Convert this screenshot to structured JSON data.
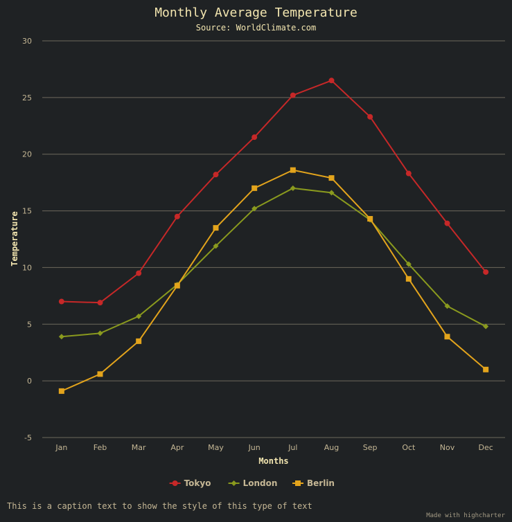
{
  "chart_data": {
    "type": "line",
    "title": "Monthly Average Temperature",
    "subtitle": "Source: WorldClimate.com",
    "xlabel": "Months",
    "ylabel": "Temperature",
    "ylim": [
      -5,
      30
    ],
    "yticks": [
      -5,
      0,
      5,
      10,
      15,
      20,
      25,
      30
    ],
    "grid": true,
    "legend": "bottom-center",
    "categories": [
      "Jan",
      "Feb",
      "Mar",
      "Apr",
      "May",
      "Jun",
      "Jul",
      "Aug",
      "Sep",
      "Oct",
      "Nov",
      "Dec"
    ],
    "series": [
      {
        "name": "Tokyo",
        "color": "#c62828",
        "marker": "circle",
        "values": [
          7.0,
          6.9,
          9.5,
          14.5,
          18.2,
          21.5,
          25.2,
          26.5,
          23.3,
          18.3,
          13.9,
          9.6
        ]
      },
      {
        "name": "London",
        "color": "#8a9a1e",
        "marker": "diamond",
        "values": [
          3.9,
          4.2,
          5.7,
          8.5,
          11.9,
          15.2,
          17.0,
          16.6,
          14.2,
          10.3,
          6.6,
          4.8
        ]
      },
      {
        "name": "Berlin",
        "color": "#e3a41c",
        "marker": "square",
        "values": [
          -0.9,
          0.6,
          3.5,
          8.4,
          13.5,
          17.0,
          18.6,
          17.9,
          14.3,
          9.0,
          3.9,
          1.0
        ]
      }
    ]
  },
  "caption": "This is a caption text to show the style of this type of text",
  "credits": "Made with highcharter"
}
